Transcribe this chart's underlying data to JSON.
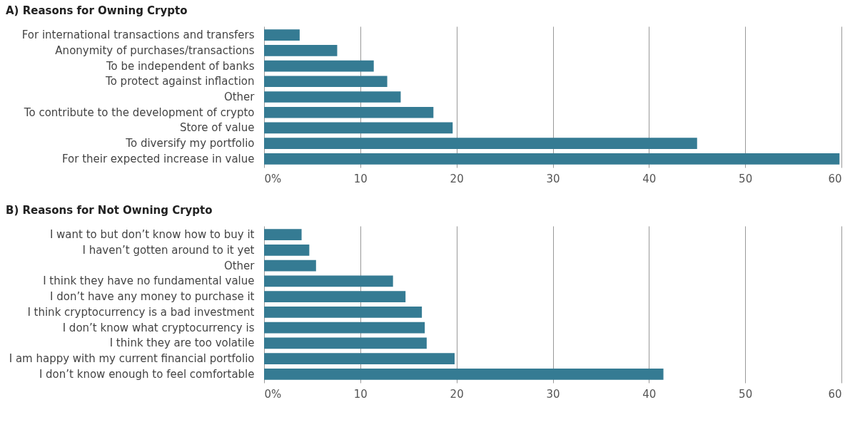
{
  "chart_data": [
    {
      "type": "bar",
      "orientation": "horizontal",
      "title": "A) Reasons for Owning Crypto",
      "categories": [
        "For international transactions and transfers",
        "Anonymity of purchases/transactions",
        "To be independent of banks",
        "To protect against inflaction",
        "Other",
        "To contribute to the development of crypto",
        "Store of value",
        "To diversify my portfolio",
        "For their expected increase in value"
      ],
      "values": [
        3.7,
        7.6,
        11.4,
        12.8,
        14.2,
        17.6,
        19.6,
        45.0,
        59.8
      ],
      "color": "#357b93",
      "xlim": [
        0,
        60
      ],
      "xticks": [
        {
          "value": 0,
          "label": "0%"
        },
        10,
        20,
        30,
        40,
        50,
        60
      ],
      "grid": "x"
    },
    {
      "type": "bar",
      "orientation": "horizontal",
      "title": "B) Reasons for Not Owning Crypto",
      "categories": [
        "I want to but don’t know how to buy it",
        "I haven’t gotten around to it yet",
        "Other",
        "I think they have no fundamental value",
        "I don’t have any money to purchase it",
        "I think cryptocurrency is a bad investment",
        "I don’t know what cryptocurrency is",
        "I think they are too volatile",
        "I am happy with my current financial portfolio",
        "I don’t know enough to feel comfortable"
      ],
      "values": [
        3.9,
        4.7,
        5.4,
        13.4,
        14.7,
        16.4,
        16.7,
        16.9,
        19.8,
        41.5
      ],
      "color": "#357b93",
      "xlim": [
        0,
        60
      ],
      "xticks": [
        {
          "value": 0,
          "label": "0%"
        },
        10,
        20,
        30,
        40,
        50,
        60
      ],
      "grid": "x"
    }
  ]
}
